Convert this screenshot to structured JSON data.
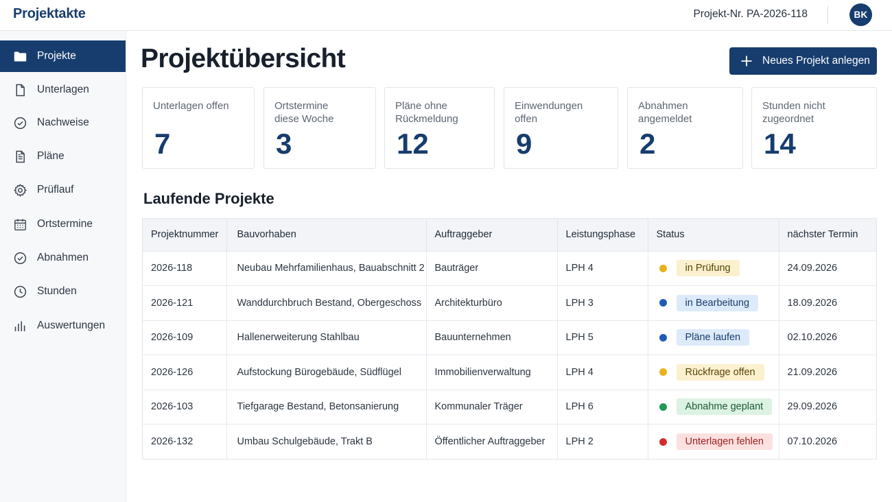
{
  "app": {
    "title": "Projektakte",
    "project_no": "Projekt-Nr. PA-2026-118",
    "avatar": "BK"
  },
  "sidebar": {
    "items": [
      {
        "label": "Projekte",
        "icon": "folder-icon",
        "active": true
      },
      {
        "label": "Unterlagen",
        "icon": "document-icon"
      },
      {
        "label": "Nachweise",
        "icon": "check-circle-icon"
      },
      {
        "label": "Pläne",
        "icon": "file-lines-icon"
      },
      {
        "label": "Prüflauf",
        "icon": "gear-icon"
      },
      {
        "label": "Ortstermine",
        "icon": "calendar-icon"
      },
      {
        "label": "Abnahmen",
        "icon": "check-circle-icon"
      },
      {
        "label": "Stunden",
        "icon": "clock-icon"
      },
      {
        "label": "Auswertungen",
        "icon": "bar-chart-icon"
      }
    ]
  },
  "main": {
    "title": "Projektübersicht",
    "new_button": "Neues Projekt anlegen",
    "kpis": [
      {
        "label": "Unterlagen offen",
        "value": "7"
      },
      {
        "label": "Ortstermine diese Woche",
        "value": "3"
      },
      {
        "label": "Pläne ohne Rückmeldung",
        "value": "12"
      },
      {
        "label": "Einwendungen offen",
        "value": "9"
      },
      {
        "label": "Abnahmen angemeldet",
        "value": "2"
      },
      {
        "label": "Stunden nicht zugeordnet",
        "value": "14"
      }
    ],
    "section_title": "Laufende Projekte",
    "table": {
      "headers": [
        "Projektnummer",
        "Bauvorhaben",
        "Auftraggeber",
        "Leistungsphase",
        "Status",
        "nächster Termin"
      ],
      "rows": [
        {
          "nr": "2026-118",
          "bau": "Neubau Mehrfamilienhaus, Bauabschnitt 2",
          "ag": "Bauträger",
          "lph": "LPH 4",
          "status": "in Prüfung",
          "tone": "yellow",
          "date": "24.09.2026"
        },
        {
          "nr": "2026-121",
          "bau": "Wanddurchbruch Bestand, Obergeschoss",
          "ag": "Architekturbüro",
          "lph": "LPH 3",
          "status": "in Bearbeitung",
          "tone": "blue",
          "date": "18.09.2026"
        },
        {
          "nr": "2026-109",
          "bau": "Hallenerweiterung Stahlbau",
          "ag": "Bauunternehmen",
          "lph": "LPH 5",
          "status": "Pläne laufen",
          "tone": "blue",
          "date": "02.10.2026"
        },
        {
          "nr": "2026-126",
          "bau": "Aufstockung Bürogebäude, Südflügel",
          "ag": "Immobilienverwaltung",
          "lph": "LPH 4",
          "status": "Rückfrage offen",
          "tone": "yellow",
          "date": "21.09.2026"
        },
        {
          "nr": "2026-103",
          "bau": "Tiefgarage Bestand, Betonsanierung",
          "ag": "Kommunaler Träger",
          "lph": "LPH 6",
          "status": "Abnahme geplant",
          "tone": "green",
          "date": "29.09.2026"
        },
        {
          "nr": "2026-132",
          "bau": "Umbau Schulgebäude, Trakt B",
          "ag": "Öffentlicher Auftraggeber",
          "lph": "LPH 2",
          "status": "Unterlagen fehlen",
          "tone": "red",
          "date": "07.10.2026"
        }
      ]
    }
  },
  "colors": {
    "brand": "#173d6e",
    "tones": {
      "yellow": {
        "dot": "#e8b21a",
        "bg": "#fbf1cf",
        "fg": "#5a4306"
      },
      "blue": {
        "dot": "#1f5bb5",
        "bg": "#dceafa",
        "fg": "#1b3c6b"
      },
      "green": {
        "dot": "#1f9a53",
        "bg": "#dcf2e3",
        "fg": "#1b5a34"
      },
      "red": {
        "dot": "#d62b2b",
        "bg": "#fbe0e0",
        "fg": "#9b2020"
      }
    }
  }
}
